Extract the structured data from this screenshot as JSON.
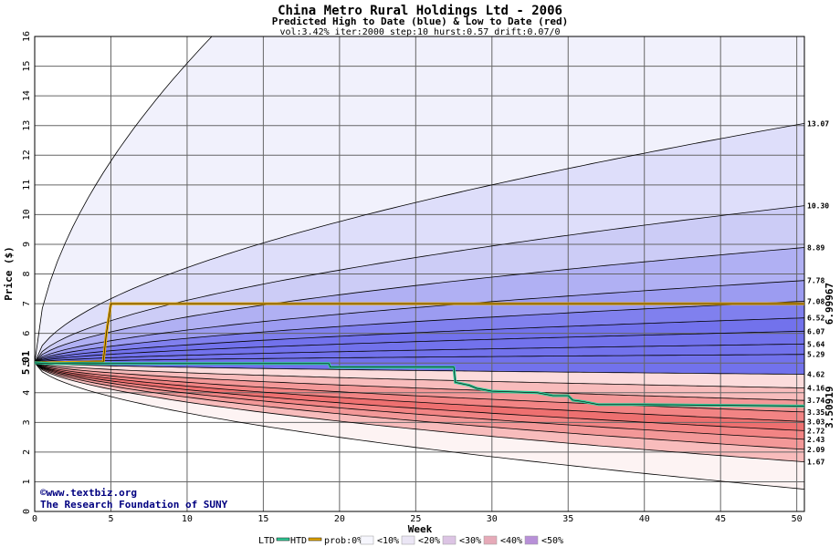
{
  "chart_data": {
    "type": "area",
    "title": "China Metro Rural Holdings Ltd - 2006",
    "subtitle": "Predicted High to Date (blue) &  Low to Date (red)",
    "params": "vol:3.42% iter:2000 step:10 hurst:0.57 drift:0.07/0",
    "xlabel": "Week",
    "ylabel": "Price ($)",
    "xlim": [
      0,
      50.5
    ],
    "ylim": [
      0,
      16
    ],
    "x_ticks": [
      0,
      5,
      10,
      15,
      20,
      25,
      30,
      35,
      40,
      45,
      50
    ],
    "y_ticks": [
      0,
      1,
      2,
      3,
      4,
      5,
      6,
      7,
      8,
      9,
      10,
      11,
      12,
      13,
      14,
      15,
      16
    ],
    "grid": true,
    "start_value": 5.01,
    "start_label": "5.01",
    "htd_value": 6.99967,
    "htd_label": "6.99967",
    "ltd_value": 3.50919,
    "ltd_label": "3.50919",
    "high_series": [
      {
        "name": "q99",
        "end": 16.0,
        "steep": true
      },
      {
        "name": "q95",
        "end": 13.07
      },
      {
        "name": "q90",
        "end": 10.3
      },
      {
        "name": "q80",
        "end": 8.89
      },
      {
        "name": "q70",
        "end": 7.78
      },
      {
        "name": "q60",
        "end": 7.08
      },
      {
        "name": "q50",
        "end": 6.52
      },
      {
        "name": "q40",
        "end": 6.07
      },
      {
        "name": "q30",
        "end": 5.64
      },
      {
        "name": "q20",
        "end": 5.29
      }
    ],
    "low_series": [
      {
        "name": "q20",
        "end": 4.62
      },
      {
        "name": "q30",
        "end": 4.16
      },
      {
        "name": "q40",
        "end": 3.74
      },
      {
        "name": "q50",
        "end": 3.35
      },
      {
        "name": "q60",
        "end": 3.03
      },
      {
        "name": "q70",
        "end": 2.72
      },
      {
        "name": "q80",
        "end": 2.43
      },
      {
        "name": "q90",
        "end": 2.09
      },
      {
        "name": "q95",
        "end": 1.67
      },
      {
        "name": "q99",
        "end": 0.75
      }
    ],
    "end_labels": [
      "13.07",
      "10.30",
      "8.89",
      "7.78",
      "7.08",
      "6.52",
      "6.07",
      "5.64",
      "5.29",
      "4.62",
      "4.16",
      "3.74",
      "3.35",
      "3.03",
      "2.72",
      "2.43",
      "2.09",
      "1.67"
    ],
    "htd_path": [
      [
        0,
        5.01
      ],
      [
        1,
        5.01
      ],
      [
        2,
        5.02
      ],
      [
        3,
        5.03
      ],
      [
        4.5,
        5.04
      ],
      [
        4.6,
        5.5
      ],
      [
        4.7,
        6.0
      ],
      [
        4.85,
        6.5
      ],
      [
        5,
        7.0
      ],
      [
        50.5,
        7.0
      ]
    ],
    "ltd_path": [
      [
        0,
        5.01
      ],
      [
        1,
        4.98
      ],
      [
        19.3,
        4.98
      ],
      [
        19.4,
        4.86
      ],
      [
        27.5,
        4.86
      ],
      [
        27.6,
        4.35
      ],
      [
        28.5,
        4.25
      ],
      [
        29,
        4.15
      ],
      [
        30,
        4.05
      ],
      [
        33,
        4.0
      ],
      [
        34,
        3.9
      ],
      [
        35,
        3.9
      ],
      [
        35.3,
        3.75
      ],
      [
        36,
        3.7
      ],
      [
        37,
        3.6
      ],
      [
        40,
        3.6
      ],
      [
        50.5,
        3.55
      ]
    ],
    "colors": {
      "high_bands": [
        "#f1f1fc",
        "#dedefa",
        "#ccccf6",
        "#b0b0f3",
        "#9c9cf1",
        "#8080ee",
        "#7272ec"
      ],
      "low_bands": [
        "#fdf3f3",
        "#fcdcdc",
        "#f8bcbc",
        "#f39898",
        "#f28484",
        "#ee7070"
      ],
      "htd": "#e6a800",
      "ltd": "#33cc99"
    },
    "legend": [
      "LTD",
      "HTD",
      "prob:0%",
      "<10%",
      "<20%",
      "<30%",
      "<40%",
      "<50%"
    ],
    "credits": [
      "©www.textbiz.org",
      "The Research Foundation of SUNY"
    ]
  }
}
